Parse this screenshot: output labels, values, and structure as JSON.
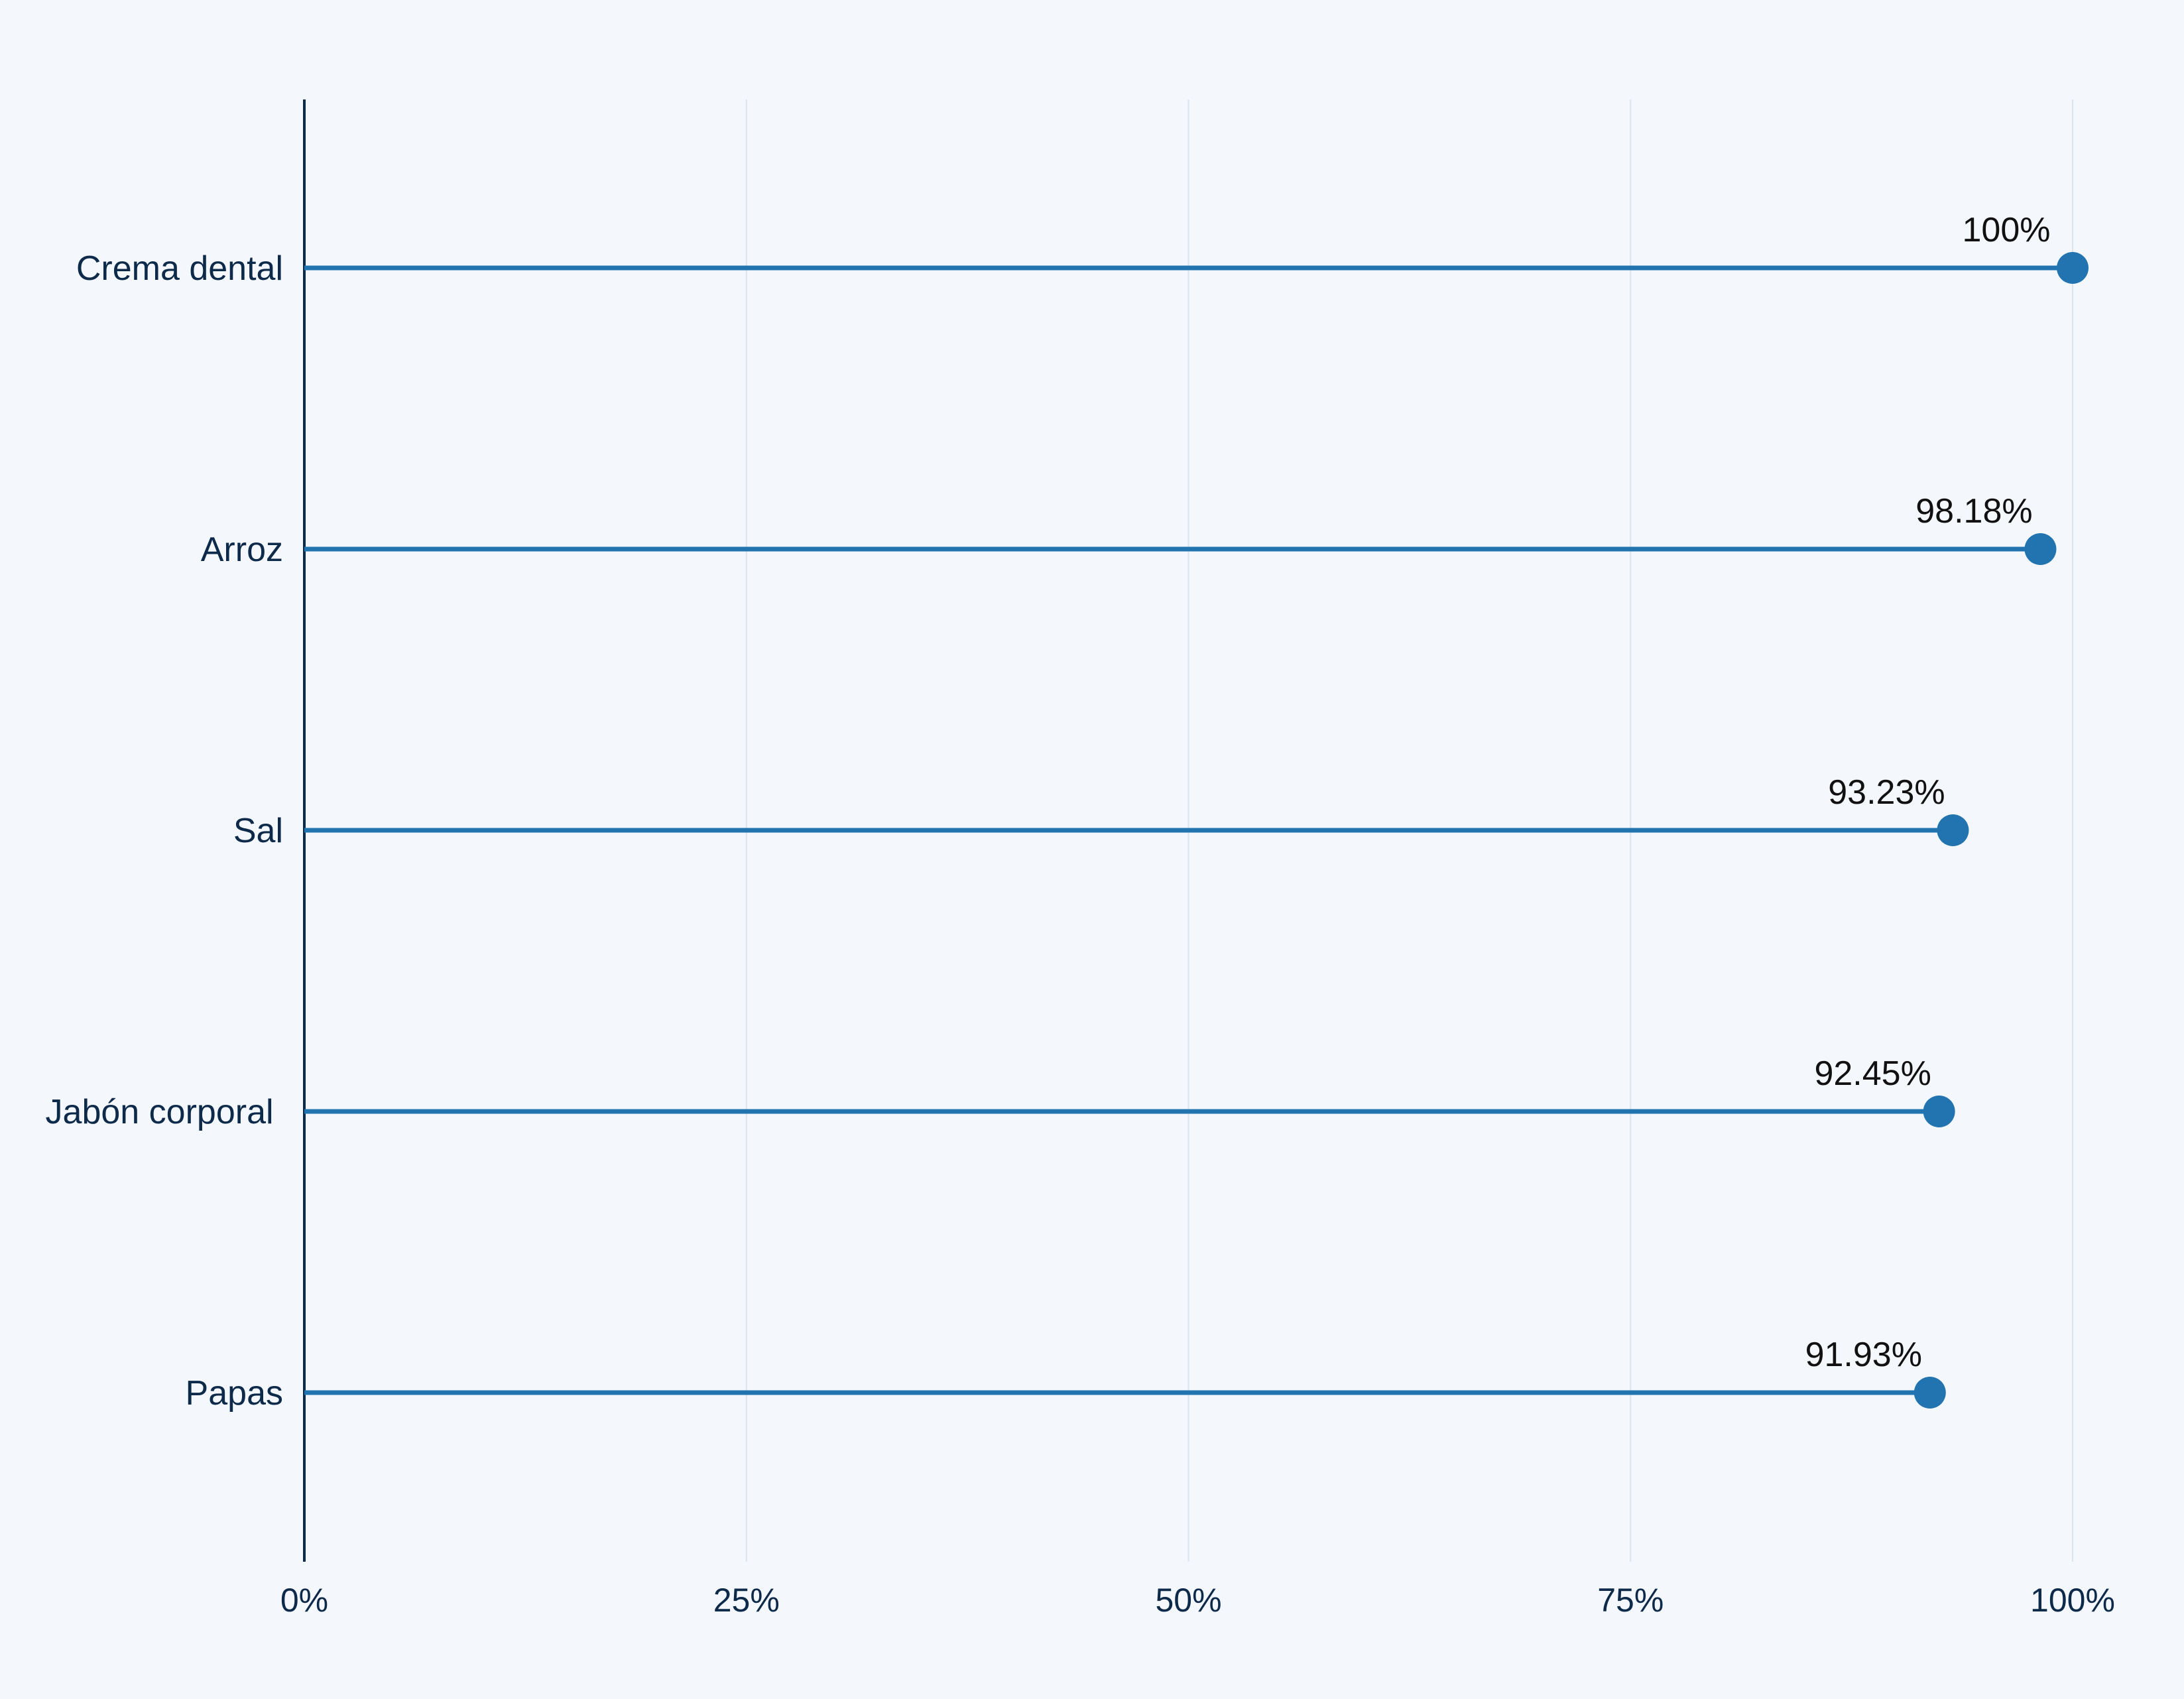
{
  "chart_data": {
    "type": "lollipop",
    "orientation": "horizontal",
    "categories": [
      "Crema dental",
      "Arroz",
      "Sal",
      "Jabón corporal ",
      "Papas"
    ],
    "values": [
      100,
      98.18,
      93.23,
      92.45,
      91.93
    ],
    "data_labels": [
      "100%",
      "98.18%",
      "93.23%",
      "92.45%",
      "91.93%"
    ],
    "x_ticks": [
      0,
      25,
      50,
      75,
      100
    ],
    "x_tick_labels": [
      "0%",
      "25%",
      "50%",
      "75%",
      "100%"
    ],
    "xlim": [
      0,
      100
    ],
    "title": "",
    "xlabel": "",
    "ylabel": "",
    "grid": "vertical",
    "legend": "none",
    "color": "#2274b0",
    "axis_color": "#0e2a4a",
    "background": "#f4f8fc"
  }
}
